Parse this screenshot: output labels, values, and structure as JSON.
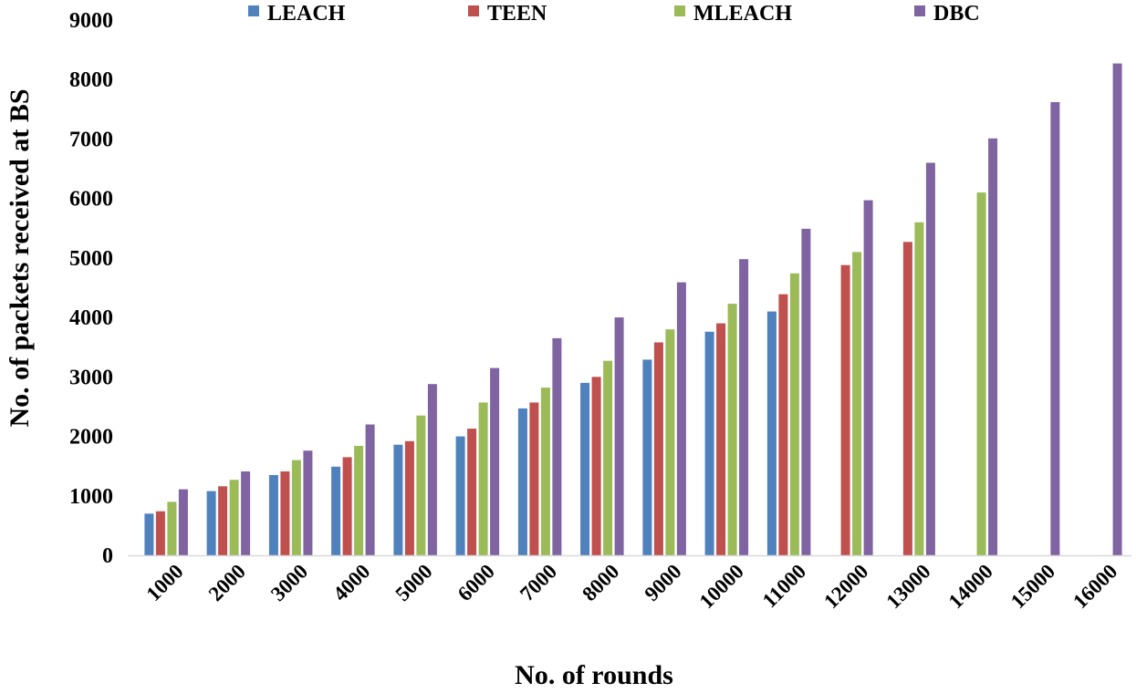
{
  "chart_data": {
    "type": "bar",
    "title": "",
    "xlabel": "No. of rounds",
    "ylabel": "No. of packets received at BS",
    "ylim": [
      0,
      9000
    ],
    "yticks": [
      0,
      1000,
      2000,
      3000,
      4000,
      5000,
      6000,
      7000,
      8000,
      9000
    ],
    "grid": false,
    "legend_position": "top",
    "categories": [
      "1000",
      "2000",
      "3000",
      "4000",
      "5000",
      "6000",
      "7000",
      "8000",
      "9000",
      "10000",
      "11000",
      "12000",
      "13000",
      "14000",
      "15000",
      "16000"
    ],
    "series": [
      {
        "name": "LEACH",
        "color": "#4f81bd",
        "values": [
          700,
          1080,
          1350,
          1490,
          1860,
          2000,
          2470,
          2900,
          3290,
          3760,
          4100,
          null,
          null,
          null,
          null,
          null
        ]
      },
      {
        "name": "TEEN",
        "color": "#c0504d",
        "values": [
          740,
          1160,
          1410,
          1650,
          1920,
          2130,
          2570,
          3000,
          3580,
          3900,
          4390,
          4880,
          5270,
          null,
          null,
          null
        ]
      },
      {
        "name": "MLEACH",
        "color": "#9bbb59",
        "values": [
          900,
          1270,
          1600,
          1840,
          2350,
          2570,
          2820,
          3270,
          3800,
          4230,
          4740,
          5100,
          5600,
          6100,
          null,
          null
        ]
      },
      {
        "name": "DBC",
        "color": "#8064a2",
        "values": [
          1110,
          1410,
          1760,
          2200,
          2880,
          3150,
          3650,
          4000,
          4590,
          4980,
          5490,
          5970,
          6600,
          7010,
          7620,
          8270
        ]
      }
    ]
  }
}
